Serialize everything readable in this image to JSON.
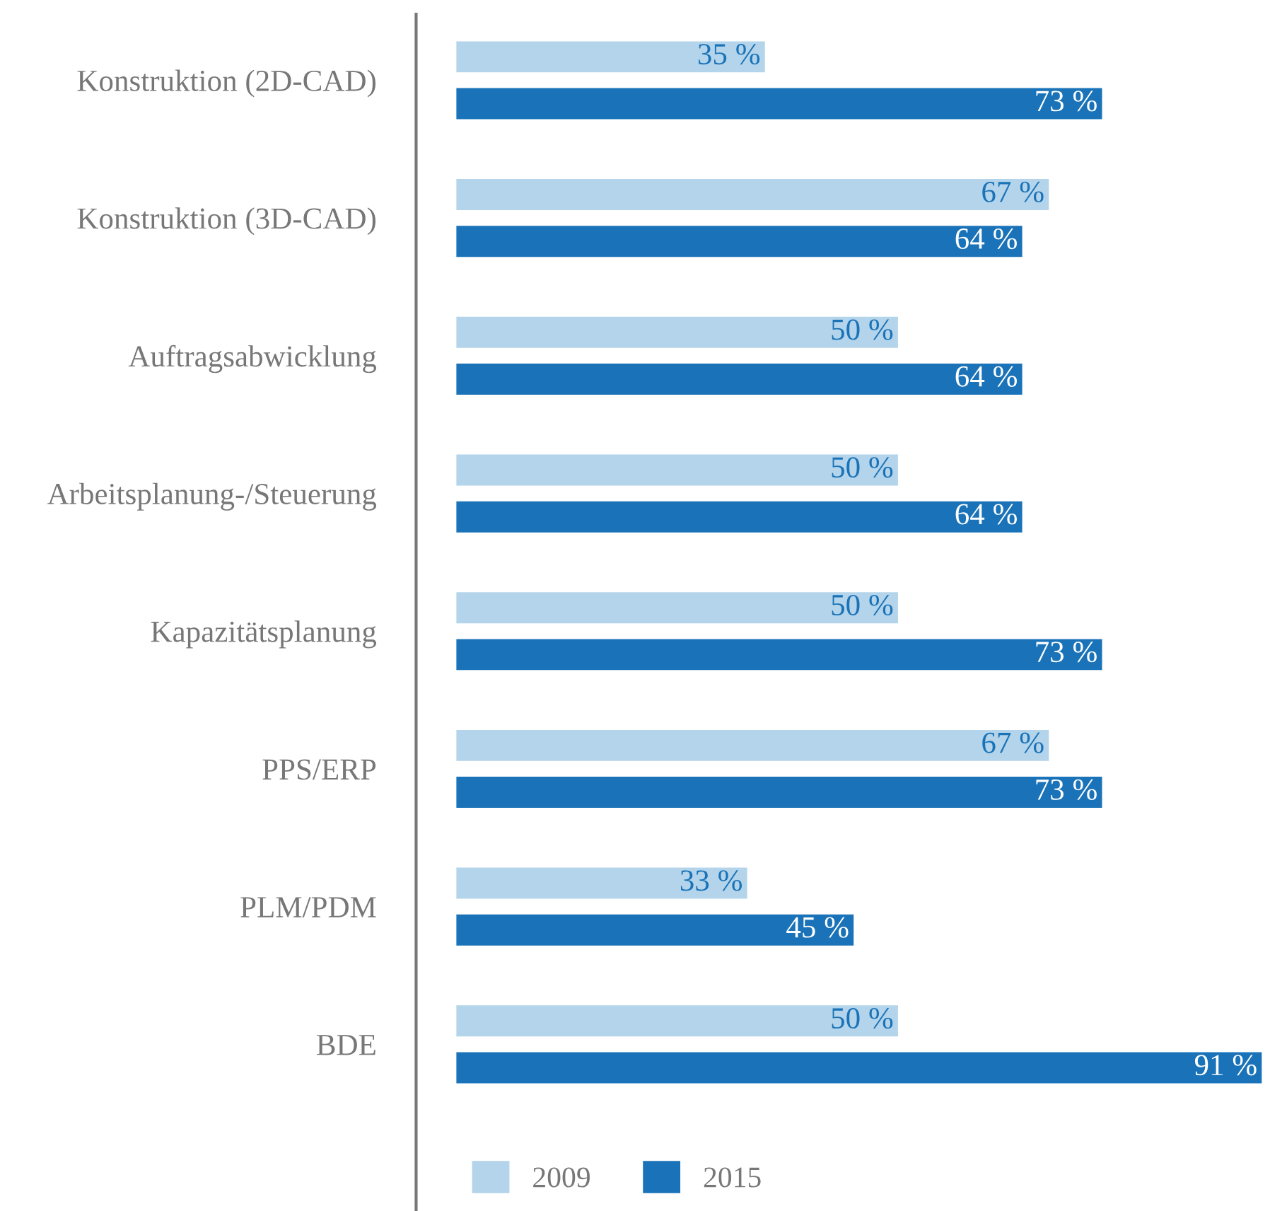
{
  "chart_data": {
    "type": "bar",
    "orientation": "horizontal",
    "categories": [
      "Konstruktion (2D-CAD)",
      "Konstruktion (3D-CAD)",
      "Auftragsabwicklung",
      "Arbeitsplanung-/Steuerung",
      "Kapazitätsplanung",
      "PPS/ERP",
      "PLM/PDM",
      "BDE"
    ],
    "series": [
      {
        "name": "2009",
        "color": "#b3d4ea",
        "values": [
          35,
          67,
          50,
          50,
          50,
          67,
          33,
          50
        ],
        "value_labels": [
          "35 %",
          "67 %",
          "50 %",
          "50 %",
          "50 %",
          "67 %",
          "33 %",
          "50 %"
        ]
      },
      {
        "name": "2015",
        "color": "#1a73b8",
        "values": [
          73,
          64,
          64,
          64,
          73,
          73,
          45,
          91
        ],
        "value_labels": [
          "73 %",
          "64 %",
          "64 %",
          "64 %",
          "73 %",
          "73 %",
          "45 %",
          "91 %"
        ]
      }
    ],
    "xlim": [
      0,
      91.5
    ],
    "tick_labels": "y",
    "legend": "bottom left",
    "grid": false
  }
}
